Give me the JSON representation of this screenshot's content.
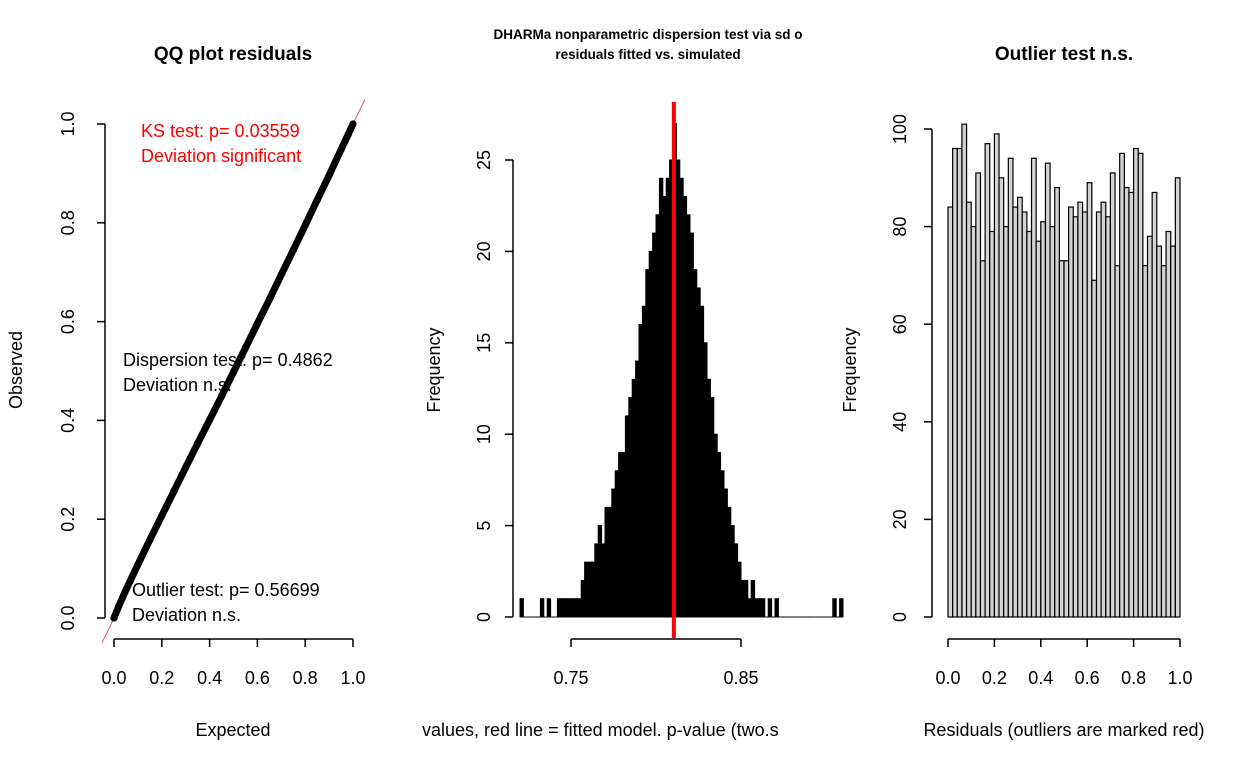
{
  "colors": {
    "axis": "#000000",
    "qq_points": "#000000",
    "reference_line": "#df536b",
    "significant": "#ff0000",
    "observed_line": "#ff0000",
    "hist_fill": "#000000",
    "outlier_bar_fill": "#d3d3d3"
  },
  "chart_data": [
    {
      "type": "scatter",
      "title": "QQ plot residuals",
      "xlabel": "Expected",
      "ylabel": "Observed",
      "xlim": [
        0,
        1
      ],
      "ylim": [
        0,
        1
      ],
      "x_ticks": [
        "0.0",
        "0.2",
        "0.4",
        "0.6",
        "0.8",
        "1.0"
      ],
      "y_ticks": [
        "0.0",
        "0.2",
        "0.4",
        "0.6",
        "0.8",
        "1.0"
      ],
      "reference_line": "y = x",
      "x": [
        0.0,
        0.02,
        0.05,
        0.1,
        0.15,
        0.2,
        0.25,
        0.3,
        0.35,
        0.4,
        0.45,
        0.5,
        0.55,
        0.6,
        0.65,
        0.7,
        0.75,
        0.8,
        0.85,
        0.9,
        0.95,
        0.98,
        1.0
      ],
      "y": [
        0.0,
        0.024,
        0.057,
        0.108,
        0.158,
        0.207,
        0.256,
        0.305,
        0.353,
        0.401,
        0.449,
        0.498,
        0.547,
        0.596,
        0.645,
        0.695,
        0.745,
        0.795,
        0.846,
        0.896,
        0.948,
        0.979,
        1.0
      ],
      "annotations": {
        "ks_line1": "KS test: p= 0.03559",
        "ks_line2": "Deviation  significant",
        "disp_line1": "Dispersion test: p= 0.4862",
        "disp_line2": "Deviation  n.s.",
        "out_line1": "Outlier test: p= 0.56699",
        "out_line2": "Deviation  n.s."
      },
      "grid": false
    },
    {
      "type": "bar",
      "title_line1": "DHARMa nonparametric dispersion test via sd o",
      "title_line2": "residuals fitted vs. simulated",
      "xlabel": "values, red line = fitted model. p-value (two.s",
      "ylabel": "Frequency",
      "xlim": [
        0.71,
        0.92
      ],
      "ylim": [
        0,
        27
      ],
      "x_ticks": [
        "0.75",
        "0.85"
      ],
      "y_ticks": [
        "0",
        "5",
        "10",
        "15",
        "20",
        "25"
      ],
      "bin_start": 0.72,
      "bin_width": 0.002,
      "observed_value": 0.8105,
      "values": [
        1,
        0,
        0,
        0,
        0,
        0,
        1,
        0,
        1,
        0,
        0,
        1,
        1,
        1,
        1,
        1,
        1,
        1,
        2,
        3,
        3,
        3,
        4,
        5,
        4,
        6,
        6,
        7,
        8,
        9,
        9,
        11,
        12,
        13,
        14,
        16,
        17,
        19,
        20,
        21,
        22,
        24,
        23,
        24,
        25,
        27,
        25,
        24,
        23,
        22,
        21,
        19,
        18,
        17,
        15,
        13,
        12,
        10,
        9,
        8,
        7,
        6,
        5,
        4,
        3,
        2,
        2,
        1,
        2,
        1,
        1,
        1,
        0,
        1,
        0,
        1,
        0,
        0,
        0,
        0,
        0,
        0,
        0,
        0,
        0,
        0,
        0,
        0,
        0,
        0,
        0,
        0,
        1,
        0,
        1
      ],
      "grid": false
    },
    {
      "type": "bar",
      "title": "Outlier test n.s.",
      "xlabel": "Residuals (outliers are marked red)",
      "ylabel": "Frequency",
      "xlim": [
        0,
        1
      ],
      "ylim": [
        0,
        105
      ],
      "x_ticks": [
        "0.0",
        "0.2",
        "0.4",
        "0.6",
        "0.8",
        "1.0"
      ],
      "y_ticks": [
        "0",
        "20",
        "40",
        "60",
        "80",
        "100"
      ],
      "bin_width": 0.02,
      "values": [
        84,
        96,
        96,
        101,
        85,
        80,
        91,
        73,
        97,
        79,
        99,
        90,
        80,
        94,
        84,
        86,
        83,
        79,
        94,
        77,
        81,
        93,
        80,
        88,
        73,
        73,
        84,
        82,
        85,
        83,
        89,
        69,
        83,
        85,
        82,
        91,
        72,
        95,
        88,
        87,
        96,
        95,
        72,
        78,
        87,
        76,
        72,
        79,
        76,
        90
      ],
      "grid": false
    }
  ]
}
